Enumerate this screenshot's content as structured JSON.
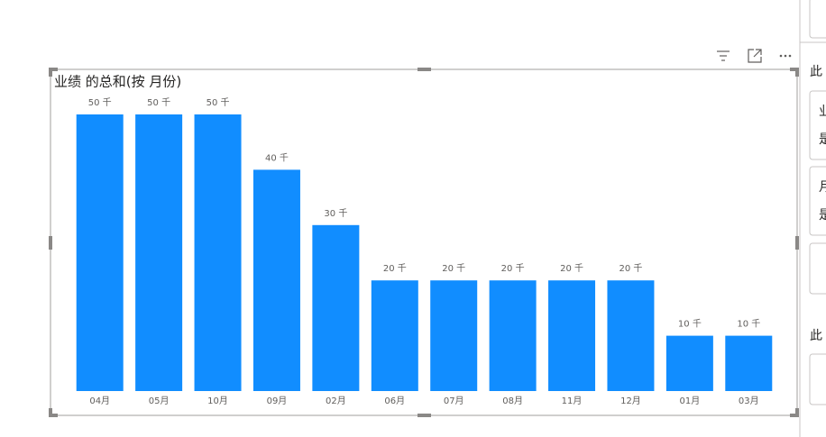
{
  "chart_data": {
    "type": "bar",
    "title": "业绩 的总和(按 月份)",
    "categories": [
      "04月",
      "05月",
      "10月",
      "09月",
      "02月",
      "06月",
      "07月",
      "08月",
      "11月",
      "12月",
      "01月",
      "03月"
    ],
    "values": [
      50,
      50,
      50,
      40,
      30,
      20,
      20,
      20,
      20,
      20,
      10,
      10
    ],
    "value_labels": [
      "50 千",
      "50 千",
      "50 千",
      "40 千",
      "30 千",
      "20 千",
      "20 千",
      "20 千",
      "20 千",
      "20 千",
      "10 千",
      "10 千"
    ],
    "color": "#118dff"
  },
  "side_panel": {
    "heading_1": "此",
    "card_1": [
      "业",
      "是"
    ],
    "card_2": [
      "月",
      "是"
    ],
    "heading_2": "此"
  }
}
